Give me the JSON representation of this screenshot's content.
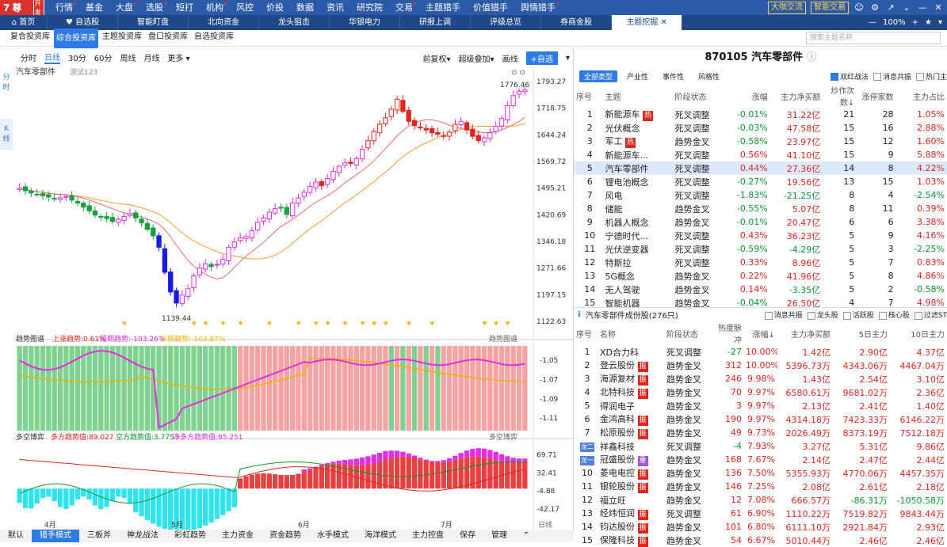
{
  "app": {
    "logo_text": "智尊版",
    "dev_badge": "开发"
  },
  "top_menu": [
    {
      "label": "行情",
      "dot": true
    },
    {
      "label": "基金",
      "dot": false
    },
    {
      "label": "大盘",
      "dot": true
    },
    {
      "label": "选股",
      "dot": true
    },
    {
      "label": "短打",
      "dot": false
    },
    {
      "label": "机构",
      "dot": true
    },
    {
      "label": "风控",
      "dot": false
    },
    {
      "label": "价投",
      "dot": false
    },
    {
      "label": "数据",
      "dot": false
    },
    {
      "label": "资讯",
      "dot": false
    },
    {
      "label": "研究院",
      "dot": false
    },
    {
      "label": "交易",
      "dot": true
    },
    {
      "label": "主题猎手",
      "dot": false
    },
    {
      "label": "价值猎手",
      "dot": false
    },
    {
      "label": "舆情猎手",
      "dot": true
    }
  ],
  "top_right": {
    "btn1": "大咖交流",
    "btn2": "智能交易"
  },
  "tabs": [
    "首页",
    "自选股",
    "智能盯盘",
    "北向资金",
    "龙头狙击",
    "华银电力",
    "研报上调",
    "评级总览",
    "券商金股",
    "主题挖掘"
  ],
  "tabs_right": {
    "zoom": "100%"
  },
  "subtabs": [
    "复合投资库",
    "综合投资库",
    "主题投资库",
    "盘口投资库",
    "自选投资库"
  ],
  "subtabs_active": 1,
  "search_placeholder": "搜索主题名称",
  "period": {
    "items": [
      "分时",
      "日线",
      "30分",
      "60分",
      "周线",
      "月线",
      "更多 ▾"
    ],
    "active": 1,
    "right": [
      "前复权▾",
      "超级叠加▾",
      "画线"
    ],
    "add": "+自选"
  },
  "side_labels": [
    "分",
    "时",
    "K",
    "线"
  ],
  "chart_data": [
    {
      "type": "candlestick",
      "title": "汽车零部件",
      "subtitle": "测试123",
      "x_labels": [
        "4月",
        "5月",
        "6月",
        "7月"
      ],
      "y_ticks": [
        1793.27,
        1718.75,
        1644.24,
        1569.72,
        1495.21,
        1420.69,
        1346.18,
        1271.66,
        1197.15,
        1122.63
      ],
      "ylim": [
        1105,
        1800
      ],
      "annotations": [
        {
          "text": "1776.46",
          "type": "max"
        },
        {
          "text": "1139.44",
          "type": "min"
        }
      ],
      "closes": [
        1495,
        1488,
        1482,
        1478,
        1474,
        1470,
        1466,
        1468,
        1472,
        1462,
        1454,
        1442,
        1432,
        1420,
        1415,
        1410,
        1402,
        1408,
        1416,
        1424,
        1412,
        1398,
        1380,
        1362,
        1330,
        1260,
        1205,
        1174,
        1196,
        1214,
        1250,
        1272,
        1284,
        1276,
        1282,
        1296,
        1330,
        1345,
        1356,
        1360,
        1376,
        1400,
        1412,
        1428,
        1438,
        1440,
        1422,
        1454,
        1468,
        1484,
        1500,
        1512,
        1502,
        1522,
        1542,
        1556,
        1566,
        1564,
        1578,
        1604,
        1628,
        1654,
        1674,
        1692,
        1716,
        1744,
        1710,
        1682,
        1670,
        1664,
        1658,
        1650,
        1646,
        1640,
        1652,
        1674,
        1682,
        1658,
        1640,
        1628,
        1636,
        1650,
        1668,
        1690,
        1726,
        1754,
        1766,
        1770
      ]
    },
    {
      "type": "bar",
      "title": "趋势图谱",
      "series_labels": [
        "上涨趋势:0.61%",
        "短期趋势:-103.26%",
        "长期趋势:-103.87%"
      ],
      "y_ticks": [
        -1.05,
        -1.07,
        -1.09,
        -1.11
      ],
      "ylim": [
        -1.123,
        -1.035
      ]
    },
    {
      "type": "bar",
      "title": "多空博弈",
      "series_labels": [
        "多方趋势值:89.027",
        "空方趋势值:3.775",
        "净多方趋势值:85.251"
      ],
      "y_ticks": [
        69.71,
        32.41,
        -4.88,
        -42.17
      ],
      "ylim": [
        -65,
        95
      ]
    }
  ],
  "panel_head": {
    "title": "趋势图谱",
    "title2": "多空博弈"
  },
  "right": {
    "title": "870105 汽车零部件",
    "filters": [
      "全部类型",
      "产业性",
      "事件性",
      "风格性"
    ],
    "checks": [
      {
        "label": "双红战法",
        "on": true
      },
      {
        "label": "消息共振",
        "on": false
      },
      {
        "label": "热门主",
        "on": false
      }
    ],
    "table1_headers": [
      "序号",
      "主题",
      "阶段状态",
      "涨幅",
      "主力净买额",
      "炒作次数↓",
      "涨停家数",
      "主力占比"
    ],
    "table1": [
      [
        "1",
        "新能源车",
        "热",
        "死叉调整",
        "-0.01%",
        "31.22亿",
        "21",
        "28",
        "1.05%"
      ],
      [
        "2",
        "光伏概念",
        "",
        "死叉调整",
        "-0.03%",
        "47.58亿",
        "15",
        "16",
        "2.88%"
      ],
      [
        "3",
        "军工",
        "热",
        "趋势金叉",
        "-0.58%",
        "23.97亿",
        "15",
        "12",
        "1.60%"
      ],
      [
        "4",
        "新能源车...",
        "",
        "死叉调整",
        "0.56%",
        "41.10亿",
        "15",
        "9",
        "5.88%"
      ],
      [
        "5",
        "汽车零部件",
        "",
        "死叉调整",
        "0.44%",
        "27.36亿",
        "14",
        "8",
        "4.22%"
      ],
      [
        "6",
        "锂电池概念",
        "",
        "死叉调整",
        "-0.27%",
        "19.56亿",
        "13",
        "15",
        "1.03%"
      ],
      [
        "7",
        "风电",
        "",
        "死叉调整",
        "-1.83%",
        "-21.25亿",
        "8",
        "4",
        "-2.54%"
      ],
      [
        "8",
        "储能",
        "",
        "趋势金叉",
        "-0.55%",
        "5.07亿",
        "8",
        "11",
        "0.39%"
      ],
      [
        "9",
        "机器人概念",
        "",
        "趋势金叉",
        "-0.01%",
        "20.47亿",
        "6",
        "6",
        "3.38%"
      ],
      [
        "10",
        "宁德时代...",
        "",
        "死叉调整",
        "0.43%",
        "36.23亿",
        "5",
        "9",
        "4.16%"
      ],
      [
        "11",
        "光伏逆变器",
        "",
        "死叉调整",
        "-0.59%",
        "-4.29亿",
        "5",
        "3",
        "-2.25%"
      ],
      [
        "12",
        "特斯拉",
        "",
        "死叉调整",
        "0.33%",
        "8.96亿",
        "5",
        "7",
        "0.83%"
      ],
      [
        "13",
        "5G概念",
        "",
        "趋势金叉",
        "0.22%",
        "41.96亿",
        "5",
        "8",
        "4.86%"
      ],
      [
        "14",
        "无人驾驶",
        "",
        "趋势金叉",
        "0.14%",
        "-3.35亿",
        "5",
        "2",
        "-0.58%"
      ],
      [
        "15",
        "智能机器",
        "",
        "趋势金叉",
        "-0.04%",
        "26.50亿",
        "4",
        "7",
        "4.98%"
      ]
    ],
    "sec2_title": "汽车零部件成份股(276只)",
    "sec2_checks": [
      "消息共振",
      "龙头股",
      "活跃股",
      "核心股",
      "过滤ST"
    ],
    "table2_headers": [
      "序号",
      "名称",
      "阶段状态",
      "热度脉冲",
      "涨幅↓",
      "主力净买额",
      "5日主力",
      "10日主力"
    ],
    "table2": [
      [
        "1",
        "XD合力科",
        "",
        "死叉调整",
        "-27",
        "10.00%",
        "1.42亿",
        "2.90亿",
        "4.37亿"
      ],
      [
        "2",
        "登云股份",
        "振",
        "趋势金叉",
        "312",
        "10.00%",
        "5396.73万",
        "4343.06万",
        "4467.04万"
      ],
      [
        "3",
        "海源复材",
        "振",
        "趋势金叉",
        "246",
        "9.98%",
        "1.43亿",
        "2.54亿",
        "3.10亿"
      ],
      [
        "4",
        "北特科技",
        "振",
        "趋势金叉",
        "70",
        "9.97%",
        "6580.61万",
        "9681.02万",
        "2.36亿"
      ],
      [
        "5",
        "得润电子",
        "",
        "趋势金叉",
        "3",
        "9.97%",
        "2.13亿",
        "2.41亿",
        "1.40亿"
      ],
      [
        "6",
        "金鸿高科",
        "振",
        "趋势金叉",
        "190",
        "9.97%",
        "4314.18万",
        "7423.33万",
        "6146.22万"
      ],
      [
        "7",
        "松原股份",
        "振",
        "趋势金叉",
        "49",
        "9.73%",
        "2026.49万",
        "8373.19万",
        "7512.18万"
      ],
      [
        "龙二",
        "祥鑫科技",
        "",
        "死叉调整",
        "-4",
        "7.93%",
        "3.27亿",
        "5.31亿",
        "9.86亿"
      ],
      [
        "龙一",
        "冠盛股份",
        "重",
        "趋势金叉",
        "168",
        "7.67%",
        "2.14亿",
        "2.47亿",
        "2.44亿"
      ],
      [
        "10",
        "菱电电控",
        "振",
        "趋势金叉",
        "136",
        "7.50%",
        "5355.93万",
        "4770.06万",
        "4457.35万"
      ],
      [
        "11",
        "银轮股份",
        "振",
        "趋势金叉",
        "146",
        "7.25%",
        "2.08亿",
        "2.61亿",
        "2.18亿"
      ],
      [
        "12",
        "福立旺",
        "",
        "趋势金叉",
        "12",
        "7.08%",
        "666.57万",
        "-86.31万",
        "-1050.58万"
      ],
      [
        "13",
        "经纬恒润",
        "振",
        "死叉调整",
        "61",
        "6.90%",
        "1110.22万",
        "7519.82万",
        "9843.44万"
      ],
      [
        "14",
        "钧达股份",
        "振",
        "趋势金叉",
        "101",
        "6.80%",
        "6111.10万",
        "2921.84万",
        "2.93亿"
      ],
      [
        "15",
        "保隆科技",
        "振",
        "趋势金叉",
        "54",
        "6.67%",
        "5010.44万",
        "2.46亿",
        "2.46亿"
      ]
    ]
  },
  "bottom_tabs": [
    "默认",
    "猎手模式",
    "三板斧",
    "神龙战法",
    "彩虹趋势",
    "主力资金",
    "资金趋势",
    "水手模式",
    "海洋模式",
    "主力控盘",
    "保存",
    "管理"
  ],
  "bottom_active": 1,
  "colors": {
    "up": "#e0261e",
    "down": "#0a9a30",
    "blue": "#2e7be5",
    "candle_down": "#18a040",
    "magenta": "#e52ce5",
    "cyan": "#2fe4ee",
    "blue_candle": "#1a1ae8"
  }
}
